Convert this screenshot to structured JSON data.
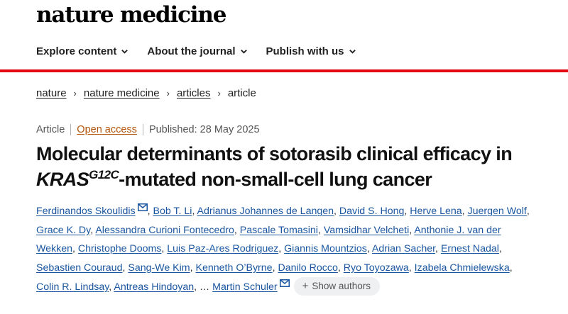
{
  "brand": {
    "name": "nature medicine"
  },
  "nav": [
    {
      "label": "Explore content"
    },
    {
      "label": "About the journal"
    },
    {
      "label": "Publish with us"
    }
  ],
  "colors": {
    "accent_bar": "#e30613",
    "link": "#1a56a0",
    "open_access": "#b45309"
  },
  "breadcrumb": [
    {
      "label": "nature"
    },
    {
      "label": "nature medicine"
    },
    {
      "label": "articles"
    },
    {
      "label": "article"
    }
  ],
  "article": {
    "type": "Article",
    "access": "Open access",
    "published": "Published: 28 May 2025",
    "title_before": "Molecular determinants of sotorasib clinical efficacy in ",
    "title_gene": "KRAS",
    "title_sup": "G12C",
    "title_after": "-mutated non-small-cell lung cancer"
  },
  "authors": [
    "Ferdinandos Skoulidis",
    "Bob T. Li",
    "Adrianus Johannes de Langen",
    "David S. Hong",
    "Herve Lena",
    "Juergen Wolf",
    "Grace K. Dy",
    "Alessandra Curioni Fontecedro",
    "Pascale Tomasini",
    "Vamsidhar Velcheti",
    "Anthonie J. van der Wekken",
    "Christophe Dooms",
    "Luis Paz-Ares Rodriguez",
    "Giannis Mountzios",
    "Adrian Sacher",
    "Ernest Nadal",
    "Sebastien Couraud",
    "Sang-We Kim",
    "Kenneth O’Byrne",
    "Danilo Rocco",
    "Ryo Toyozawa",
    "Izabela Chmielewska",
    "Colin R. Lindsay",
    "Antreas Hindoyan",
    "Martin Schuler"
  ],
  "authors_ellipsis": "…",
  "show_authors_label": "Show authors",
  "icons": {
    "nav_chevron": "chevron-down-icon",
    "breadcrumb_sep": "chevron-right-icon",
    "mail": "mail-icon",
    "plus": "plus-icon"
  }
}
